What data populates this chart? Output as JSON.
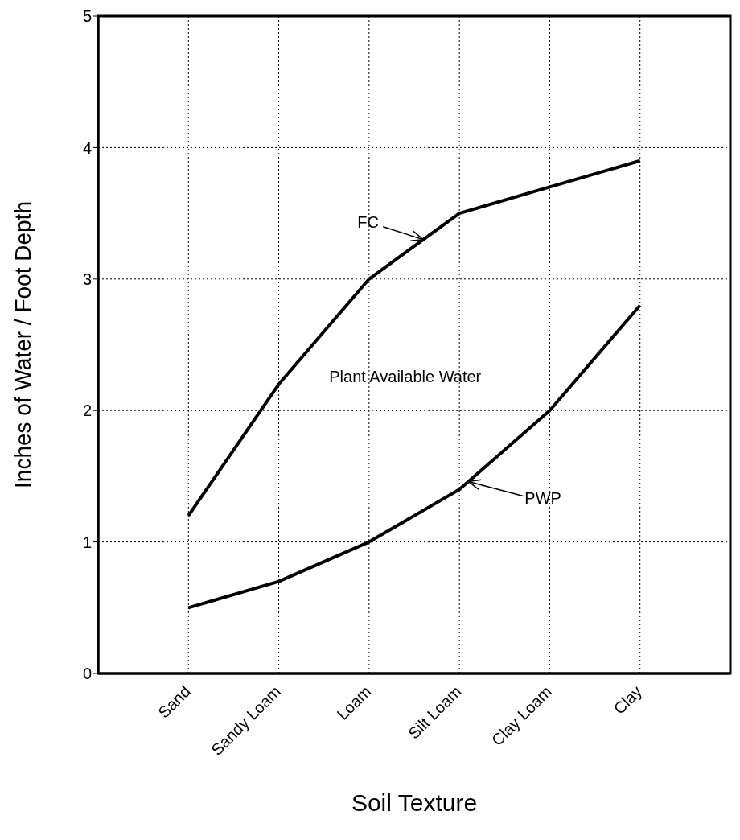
{
  "chart_data": {
    "type": "line",
    "xlabel": "Soil Texture",
    "ylabel": "Inches of Water / Foot Depth",
    "categories": [
      "Sand",
      "Sandy Loam",
      "Loam",
      "Silt Loam",
      "Clay Loam",
      "Clay"
    ],
    "series": [
      {
        "name": "FC",
        "color": "#000000",
        "values": [
          1.2,
          2.2,
          3.0,
          3.5,
          3.7,
          3.9
        ]
      },
      {
        "name": "PWP",
        "color": "#000000",
        "values": [
          0.5,
          0.7,
          1.0,
          1.4,
          2.0,
          2.8
        ]
      }
    ],
    "annotations": [
      "Plant Available Water"
    ],
    "ylim": [
      0,
      5
    ],
    "yticks": [
      0,
      1,
      2,
      3,
      4,
      5
    ],
    "grid": true,
    "line_style": "solid"
  }
}
